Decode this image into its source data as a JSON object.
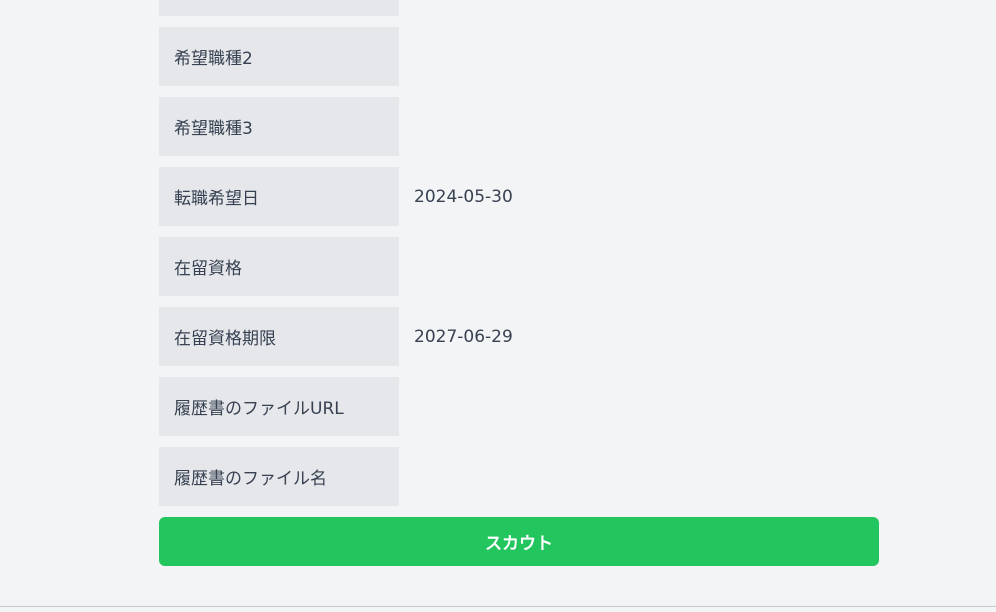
{
  "rows": [
    {
      "label": "",
      "value": ""
    },
    {
      "label": "希望職種2",
      "value": ""
    },
    {
      "label": "希望職種3",
      "value": ""
    },
    {
      "label": "転職希望日",
      "value": "2024-05-30"
    },
    {
      "label": "在留資格",
      "value": ""
    },
    {
      "label": "在留資格期限",
      "value": "2027-06-29"
    },
    {
      "label": "履歴書のファイルURL",
      "value": ""
    },
    {
      "label": "履歴書のファイル名",
      "value": ""
    }
  ],
  "scout_button": {
    "label": "スカウト",
    "color": "#22c55e"
  }
}
